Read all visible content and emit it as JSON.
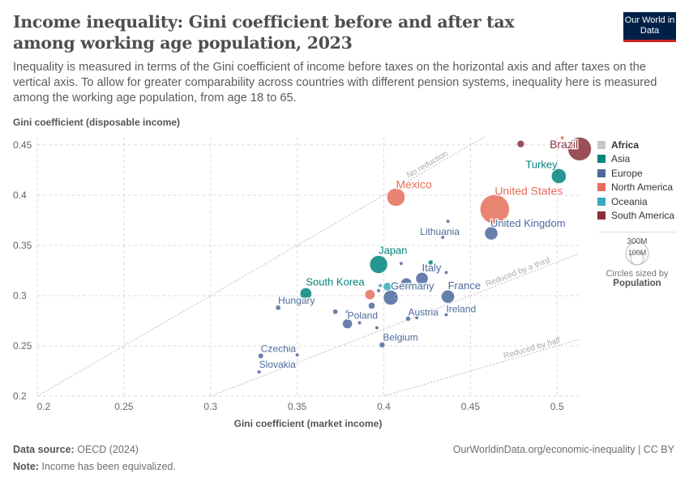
{
  "header": {
    "title": "Income inequality: Gini coefficient before and after tax among working age population, 2023",
    "subtitle": "Inequality is measured in terms of the Gini coefficient of income before taxes on the horizontal axis and after taxes on the vertical axis. To allow for greater comparability across countries with different pension systems, inequality here is measured among the working age population, from age 18 to 65.",
    "logo": "Our World in Data"
  },
  "legend": {
    "items": [
      {
        "label": "Africa",
        "color": "#c8c8c8"
      },
      {
        "label": "Asia",
        "color": "#00847e"
      },
      {
        "label": "Europe",
        "color": "#4c6a9c"
      },
      {
        "label": "North America",
        "color": "#e56e5a"
      },
      {
        "label": "Oceania",
        "color": "#38aaba"
      },
      {
        "label": "South America",
        "color": "#883039"
      }
    ],
    "size_large": "300M",
    "size_small": "100M",
    "size_caption": "Circles sized by",
    "size_variable": "Population"
  },
  "footer": {
    "source_label": "Data source:",
    "source": "OECD (2024)",
    "url": "OurWorldinData.org/economic-inequality | CC BY",
    "note_label": "Note:",
    "note": "Income has been equivalized."
  },
  "chart_data": {
    "type": "scatter",
    "xlabel": "Gini coefficient (market income)",
    "ylabel": "Gini coefficient (disposable income)",
    "xlim": [
      0.2,
      0.5125
    ],
    "ylim": [
      0.2,
      0.458
    ],
    "xticks": [
      "0.2",
      "0.25",
      "0.3",
      "0.35",
      "0.4",
      "0.45",
      "0.5"
    ],
    "yticks": [
      "0.2",
      "0.25",
      "0.3",
      "0.35",
      "0.4",
      "0.45"
    ],
    "grid": true,
    "legend_position": "right",
    "reference_lines": [
      {
        "label": "No reduction",
        "slope": 1
      },
      {
        "label": "Reduced by a third",
        "slope": 0.6667
      },
      {
        "label": "Reduced by half",
        "slope": 0.5
      }
    ],
    "points": [
      {
        "label": "Brazil",
        "region": "South America",
        "x": 0.513,
        "y": 0.446,
        "pop": 215
      },
      {
        "label": "",
        "region": "South America",
        "x": 0.479,
        "y": 0.451,
        "pop": 20
      },
      {
        "label": "",
        "region": "North America",
        "x": 0.503,
        "y": 0.457,
        "pop": 5
      },
      {
        "label": "Turkey",
        "region": "Asia",
        "x": 0.501,
        "y": 0.419,
        "pop": 85
      },
      {
        "label": "Mexico",
        "region": "North America",
        "x": 0.407,
        "y": 0.398,
        "pop": 128
      },
      {
        "label": "United States",
        "region": "North America",
        "x": 0.464,
        "y": 0.386,
        "pop": 335
      },
      {
        "label": "United Kingdom",
        "region": "Europe",
        "x": 0.462,
        "y": 0.362,
        "pop": 67
      },
      {
        "label": "",
        "region": "Europe",
        "x": 0.437,
        "y": 0.374,
        "pop": 2
      },
      {
        "label": "Lithuania",
        "region": "Europe",
        "x": 0.434,
        "y": 0.358,
        "pop": 2.8
      },
      {
        "label": "Japan",
        "region": "Asia",
        "x": 0.397,
        "y": 0.331,
        "pop": 124
      },
      {
        "label": "",
        "region": "Europe",
        "x": 0.41,
        "y": 0.332,
        "pop": 2
      },
      {
        "label": "",
        "region": "Asia",
        "x": 0.427,
        "y": 0.333,
        "pop": 9
      },
      {
        "label": "Italy",
        "region": "Europe",
        "x": 0.422,
        "y": 0.317,
        "pop": 59
      },
      {
        "label": "",
        "region": "Europe",
        "x": 0.436,
        "y": 0.323,
        "pop": 5
      },
      {
        "label": "",
        "region": "Europe",
        "x": 0.413,
        "y": 0.312,
        "pop": 48
      },
      {
        "label": "South Korea",
        "region": "Asia",
        "x": 0.355,
        "y": 0.302,
        "pop": 52
      },
      {
        "label": "Hungary",
        "region": "Europe",
        "x": 0.339,
        "y": 0.288,
        "pop": 9.6
      },
      {
        "label": "",
        "region": "North America",
        "x": 0.392,
        "y": 0.301,
        "pop": 39
      },
      {
        "label": "",
        "region": "Oceania",
        "x": 0.398,
        "y": 0.31,
        "pop": 5
      },
      {
        "label": "",
        "region": "Oceania",
        "x": 0.402,
        "y": 0.309,
        "pop": 26
      },
      {
        "label": "",
        "region": "Europe",
        "x": 0.397,
        "y": 0.305,
        "pop": 2
      },
      {
        "label": "Germany",
        "region": "Europe",
        "x": 0.404,
        "y": 0.298,
        "pop": 84
      },
      {
        "label": "",
        "region": "Europe",
        "x": 0.407,
        "y": 0.299,
        "pop": 2
      },
      {
        "label": "",
        "region": "Europe",
        "x": 0.393,
        "y": 0.29,
        "pop": 17
      },
      {
        "label": "",
        "region": "Europe",
        "x": 0.372,
        "y": 0.284,
        "pop": 10
      },
      {
        "label": "",
        "region": "Europe",
        "x": 0.379,
        "y": 0.284,
        "pop": 1.3
      },
      {
        "label": "Poland",
        "region": "Europe",
        "x": 0.379,
        "y": 0.272,
        "pop": 37
      },
      {
        "label": "",
        "region": "Europe",
        "x": 0.386,
        "y": 0.273,
        "pop": 2.1
      },
      {
        "label": "",
        "region": "Europe",
        "x": 0.396,
        "y": 0.268,
        "pop": 2
      },
      {
        "label": "France",
        "region": "Europe",
        "x": 0.437,
        "y": 0.299,
        "pop": 68
      },
      {
        "label": "Ireland",
        "region": "Europe",
        "x": 0.436,
        "y": 0.281,
        "pop": 5
      },
      {
        "label": "Austria",
        "region": "Europe",
        "x": 0.414,
        "y": 0.277,
        "pop": 9
      },
      {
        "label": "",
        "region": "Europe",
        "x": 0.419,
        "y": 0.278,
        "pop": 4
      },
      {
        "label": "Belgium",
        "region": "Europe",
        "x": 0.399,
        "y": 0.251,
        "pop": 11.7
      },
      {
        "label": "Czechia",
        "region": "Europe",
        "x": 0.329,
        "y": 0.24,
        "pop": 10.5
      },
      {
        "label": "",
        "region": "Europe",
        "x": 0.35,
        "y": 0.241,
        "pop": 2
      },
      {
        "label": "Slovakia",
        "region": "Europe",
        "x": 0.328,
        "y": 0.224,
        "pop": 5.4
      }
    ]
  }
}
